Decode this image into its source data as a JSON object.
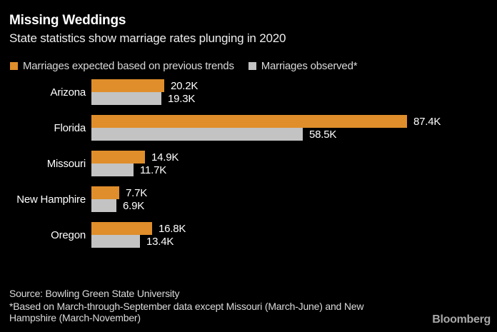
{
  "header": {
    "title": "Missing Weddings",
    "subtitle": "State statistics show marriage rates plunging in 2020"
  },
  "chart_data": {
    "type": "bar",
    "orientation": "horizontal",
    "title": "Missing Weddings",
    "subtitle": "State statistics show marriage rates plunging in 2020",
    "categories": [
      "Arizona",
      "Florida",
      "Missouri",
      "New Hamphire",
      "Oregon"
    ],
    "series": [
      {
        "name": "Marriages expected based on previous trends",
        "color": "#DF8E2B",
        "values": [
          20.2,
          87.4,
          14.9,
          7.7,
          16.8
        ],
        "labels": [
          "20.2K",
          "87.4K",
          "14.9K",
          "7.7K",
          "16.8K"
        ]
      },
      {
        "name": "Marriages observed*",
        "color": "#C3C3C3",
        "values": [
          19.3,
          58.5,
          11.7,
          6.9,
          13.4
        ],
        "labels": [
          "19.3K",
          "58.5K",
          "11.7K",
          "6.9K",
          "13.4K"
        ]
      }
    ],
    "unit": "thousands of marriages",
    "xlim": [
      0,
      90
    ],
    "value_labels": true,
    "grid": false,
    "legend_position": "top"
  },
  "footer": {
    "source": "Source: Bowling Green State University",
    "footnote": "*Based on March-through-September data except Missouri (March-June) and New Hampshire (March-November)",
    "logo": "Bloomberg"
  },
  "colors": {
    "background": "#000000",
    "expected_bar": "#DF8E2B",
    "observed_bar": "#C3C3C3",
    "title_text": "#FFFFFF",
    "footer_text": "#DBDBDB"
  }
}
